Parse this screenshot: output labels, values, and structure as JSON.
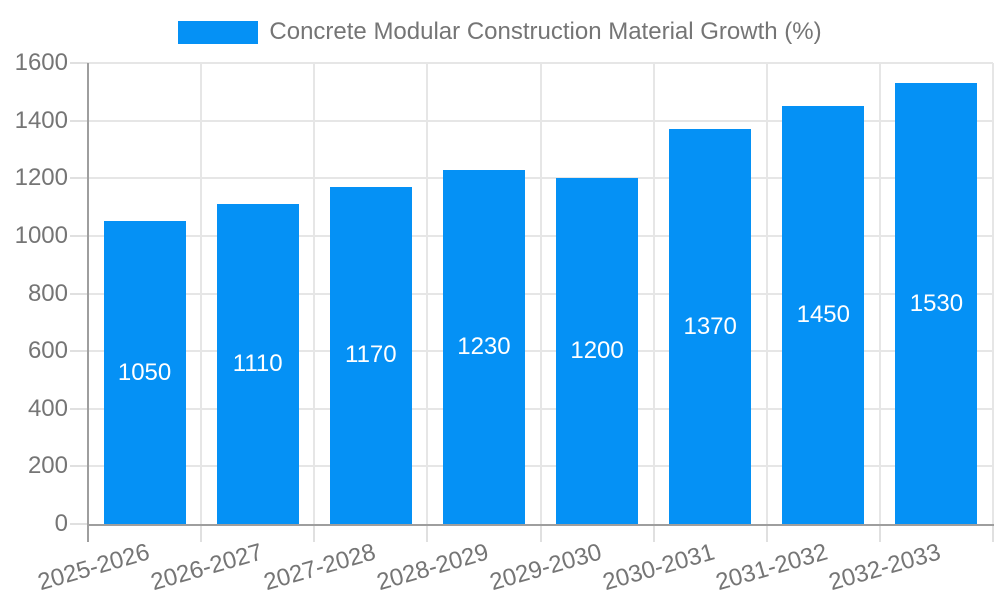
{
  "chart_data": {
    "type": "bar",
    "title": "Concrete Modular Construction Material Growth (%)",
    "categories": [
      "2025-2026",
      "2026-2027",
      "2027-2028",
      "2028-2029",
      "2029-2030",
      "2030-2031",
      "2031-2032",
      "2032-2033"
    ],
    "values": [
      1050,
      1110,
      1170,
      1230,
      1200,
      1370,
      1450,
      1530
    ],
    "xlabel": "",
    "ylabel": "",
    "ylim": [
      0,
      1600
    ],
    "yticks": [
      0,
      200,
      400,
      600,
      800,
      1000,
      1200,
      1400,
      1600
    ],
    "grid": "horizontal and vertical light gridlines",
    "legend_position": "top-center",
    "value_labels": "white, centered inside bars"
  },
  "colors": {
    "bar": "#0591f5",
    "bar_value_label": "#ffffff",
    "axis_text": "#757575",
    "legend_text": "#757575",
    "gridline": "#e6e6e6",
    "tick": "#e0e0e0",
    "axis_line": "#9e9e9e",
    "background": "#ffffff"
  }
}
